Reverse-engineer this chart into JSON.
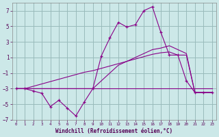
{
  "xlabel": "Windchill (Refroidissement éolien,°C)",
  "background_color": "#cce8e8",
  "grid_color": "#99bbbb",
  "line_color": "#880088",
  "xlim": [
    -0.5,
    23.5
  ],
  "ylim": [
    -7,
    8
  ],
  "xticks": [
    0,
    1,
    2,
    3,
    4,
    5,
    6,
    7,
    8,
    9,
    10,
    11,
    12,
    13,
    14,
    15,
    16,
    17,
    18,
    19,
    20,
    21,
    22,
    23
  ],
  "yticks": [
    -7,
    -5,
    -3,
    -1,
    1,
    3,
    5,
    7
  ],
  "series1_x": [
    0,
    1,
    2,
    3,
    4,
    5,
    6,
    7,
    8,
    9,
    10,
    11,
    12,
    13,
    14,
    15,
    16,
    17,
    18,
    19,
    20,
    21,
    22,
    23
  ],
  "series1_y": [
    -3,
    -3,
    -3,
    -3,
    -3,
    -3,
    -3,
    -3,
    -3,
    -3,
    -3,
    -3,
    -3,
    -3,
    -3,
    -3,
    -3,
    -3,
    -3,
    -3,
    -3,
    -3,
    -3,
    -3
  ],
  "series2_x": [
    0,
    1,
    2,
    3,
    4,
    5,
    6,
    7,
    8,
    9,
    10,
    11,
    12,
    13,
    14,
    15,
    16,
    17,
    18,
    19,
    20,
    21,
    22,
    23
  ],
  "series2_y": [
    -3,
    -3,
    -2.7,
    -2.4,
    -2.1,
    -1.8,
    -1.5,
    -1.2,
    -0.9,
    -0.7,
    -0.4,
    -0.1,
    0.2,
    0.5,
    0.8,
    1.1,
    1.4,
    1.6,
    1.7,
    1.3,
    1.3,
    -3.5,
    -3.5,
    -3.5
  ],
  "series3_x": [
    0,
    1,
    2,
    3,
    4,
    5,
    6,
    7,
    8,
    9,
    10,
    11,
    12,
    13,
    14,
    15,
    16,
    17,
    18,
    19,
    20,
    21,
    22,
    23
  ],
  "series3_y": [
    -3,
    -3,
    -3,
    -3,
    -3,
    -3,
    -3,
    -3,
    -3,
    -3,
    -2,
    -1,
    0,
    0.5,
    1,
    1.5,
    2,
    2.2,
    2.5,
    2.0,
    1.5,
    -3.5,
    -3.5,
    -3.5
  ],
  "series4_x": [
    0,
    1,
    2,
    3,
    4,
    5,
    6,
    7,
    8,
    9,
    10,
    11,
    12,
    13,
    14,
    15,
    16,
    17,
    18,
    19,
    20,
    21,
    22,
    23
  ],
  "series4_y": [
    -3,
    -3,
    -3.3,
    -3.6,
    -5.3,
    -4.5,
    -5.5,
    -6.5,
    -4.7,
    -3,
    1.2,
    3.5,
    5.5,
    4.9,
    5.2,
    7.0,
    7.5,
    4.2,
    1.3,
    1.3,
    -2.0,
    -3.5,
    -3.5,
    -3.5
  ]
}
